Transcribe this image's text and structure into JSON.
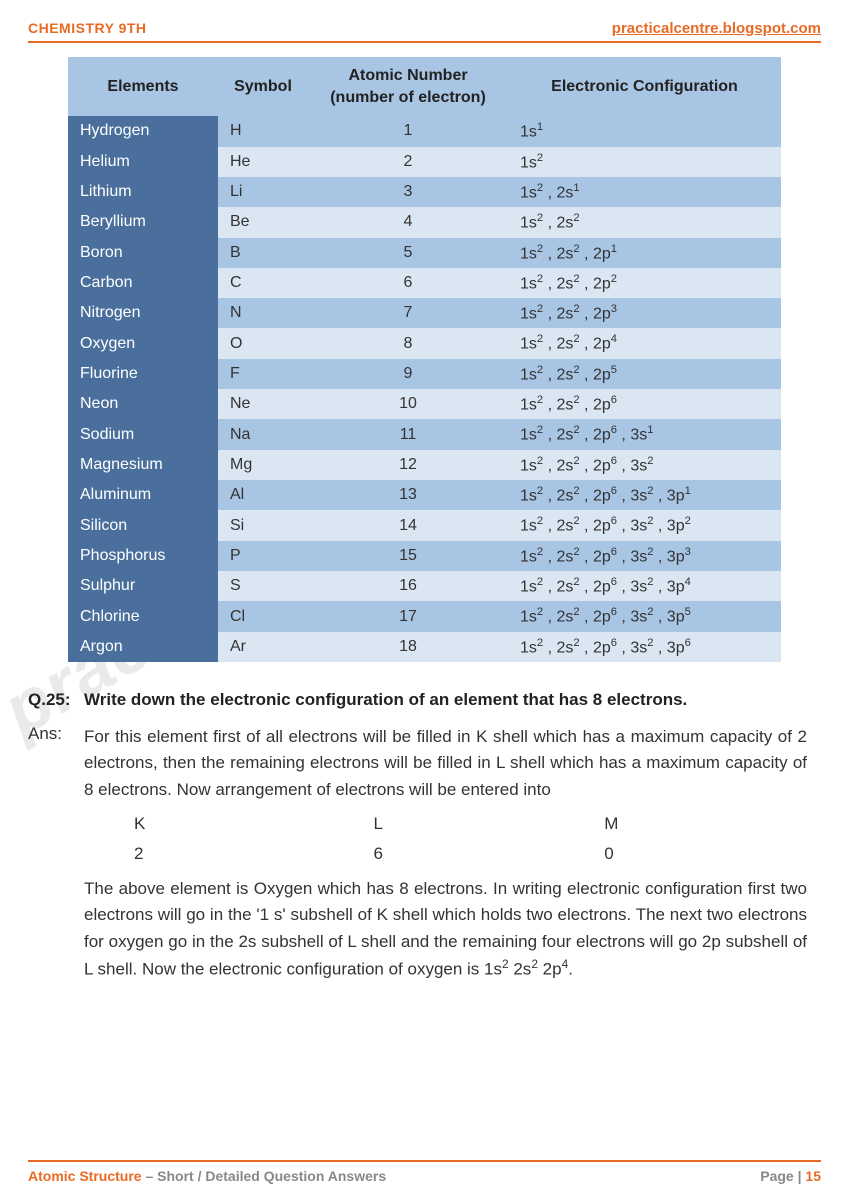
{
  "header": {
    "left": "CHEMISTRY 9TH",
    "right": "practicalcentre.blogspot.com"
  },
  "table": {
    "columns": [
      "Elements",
      "Symbol",
      "Atomic Number (number of electron)",
      "Electronic Configuration"
    ],
    "header_bg": "#a9c5e4",
    "name_col_bg": "#4a6f9c",
    "row_odd_bg": "#a9c5e4",
    "row_even_bg": "#dbe6f3",
    "rows": [
      {
        "name": "Hydrogen",
        "symbol": "H",
        "num": "1",
        "cfg": [
          [
            "1s",
            "1"
          ]
        ]
      },
      {
        "name": "Helium",
        "symbol": "He",
        "num": "2",
        "cfg": [
          [
            "1s",
            "2"
          ]
        ]
      },
      {
        "name": "Lithium",
        "symbol": "Li",
        "num": "3",
        "cfg": [
          [
            "1s",
            "2"
          ],
          [
            "2s",
            "1"
          ]
        ]
      },
      {
        "name": "Beryllium",
        "symbol": "Be",
        "num": "4",
        "cfg": [
          [
            "1s",
            "2"
          ],
          [
            "2s",
            "2"
          ]
        ]
      },
      {
        "name": "Boron",
        "symbol": "B",
        "num": "5",
        "cfg": [
          [
            "1s",
            "2"
          ],
          [
            "2s",
            "2"
          ],
          [
            "2p",
            "1"
          ]
        ]
      },
      {
        "name": "Carbon",
        "symbol": "C",
        "num": "6",
        "cfg": [
          [
            "1s",
            "2"
          ],
          [
            "2s",
            "2"
          ],
          [
            "2p",
            "2"
          ]
        ]
      },
      {
        "name": "Nitrogen",
        "symbol": "N",
        "num": "7",
        "cfg": [
          [
            "1s",
            "2"
          ],
          [
            "2s",
            "2"
          ],
          [
            "2p",
            "3"
          ]
        ]
      },
      {
        "name": "Oxygen",
        "symbol": "O",
        "num": "8",
        "cfg": [
          [
            "1s",
            "2"
          ],
          [
            "2s",
            "2"
          ],
          [
            "2p",
            "4"
          ]
        ]
      },
      {
        "name": "Fluorine",
        "symbol": "F",
        "num": "9",
        "cfg": [
          [
            "1s",
            "2"
          ],
          [
            "2s",
            "2"
          ],
          [
            "2p",
            "5"
          ]
        ]
      },
      {
        "name": "Neon",
        "symbol": "Ne",
        "num": "10",
        "cfg": [
          [
            "1s",
            "2"
          ],
          [
            "2s",
            "2"
          ],
          [
            "2p",
            "6"
          ]
        ]
      },
      {
        "name": "Sodium",
        "symbol": "Na",
        "num": "11",
        "cfg": [
          [
            "1s",
            "2"
          ],
          [
            "2s",
            "2"
          ],
          [
            "2p",
            "6"
          ],
          [
            "3s",
            "1"
          ]
        ]
      },
      {
        "name": "Magnesium",
        "symbol": "Mg",
        "num": "12",
        "cfg": [
          [
            "1s",
            "2"
          ],
          [
            "2s",
            "2"
          ],
          [
            "2p",
            "6"
          ],
          [
            "3s",
            "2"
          ]
        ]
      },
      {
        "name": "Aluminum",
        "symbol": "Al",
        "num": "13",
        "cfg": [
          [
            "1s",
            "2"
          ],
          [
            "2s",
            "2"
          ],
          [
            "2p",
            "6"
          ],
          [
            "3s",
            "2"
          ],
          [
            "3p",
            "1"
          ]
        ]
      },
      {
        "name": "Silicon",
        "symbol": "Si",
        "num": "14",
        "cfg": [
          [
            "1s",
            "2"
          ],
          [
            "2s",
            "2"
          ],
          [
            "2p",
            "6"
          ],
          [
            "3s",
            "2"
          ],
          [
            "3p",
            "2"
          ]
        ]
      },
      {
        "name": "Phosphorus",
        "symbol": "P",
        "num": "15",
        "cfg": [
          [
            "1s",
            "2"
          ],
          [
            "2s",
            "2"
          ],
          [
            "2p",
            "6"
          ],
          [
            "3s",
            "2"
          ],
          [
            "3p",
            "3"
          ]
        ]
      },
      {
        "name": "Sulphur",
        "symbol": "S",
        "num": "16",
        "cfg": [
          [
            "1s",
            "2"
          ],
          [
            "2s",
            "2"
          ],
          [
            "2p",
            "6"
          ],
          [
            "3s",
            "2"
          ],
          [
            "3p",
            "4"
          ]
        ]
      },
      {
        "name": "Chlorine",
        "symbol": "Cl",
        "num": "17",
        "cfg": [
          [
            "1s",
            "2"
          ],
          [
            "2s",
            "2"
          ],
          [
            "2p",
            "6"
          ],
          [
            "3s",
            "2"
          ],
          [
            "3p",
            "5"
          ]
        ]
      },
      {
        "name": "Argon",
        "symbol": "Ar",
        "num": "18",
        "cfg": [
          [
            "1s",
            "2"
          ],
          [
            "2s",
            "2"
          ],
          [
            "2p",
            "6"
          ],
          [
            "3s",
            "2"
          ],
          [
            "3p",
            "6"
          ]
        ]
      }
    ]
  },
  "question": {
    "label": "Q.25:",
    "text": "Write down the electronic configuration of an element that has 8 electrons."
  },
  "answer": {
    "label": "Ans:",
    "para1": "For this element first of all electrons will be filled in K shell which has a maximum capacity of 2 electrons, then the remaining electrons will be filled in L shell which has a maximum capacity of 8 electrons. Now arrangement of electrons will be entered into",
    "shells": {
      "labels": [
        "K",
        "L",
        "M"
      ],
      "values": [
        "2",
        "6",
        "0"
      ]
    },
    "para2_prefix": "The above element is Oxygen which has 8 electrons. In writing electronic configuration first two electrons will go in the '1 s' subshell of K shell which holds two electrons. The next two electrons for oxygen go in the 2s subshell of L shell and the remaining four electrons will go 2p subshell of L shell. Now the electronic configuration of oxygen is ",
    "final_cfg": [
      [
        "1s",
        "2"
      ],
      [
        "2s",
        "2"
      ],
      [
        "2p",
        "4"
      ]
    ]
  },
  "footer": {
    "topic": "Atomic Structure",
    "sep": " – ",
    "subtitle": "Short / Detailed Question Answers",
    "page_label": "Page | ",
    "page_num": "15"
  },
  "watermark": "practicalc"
}
